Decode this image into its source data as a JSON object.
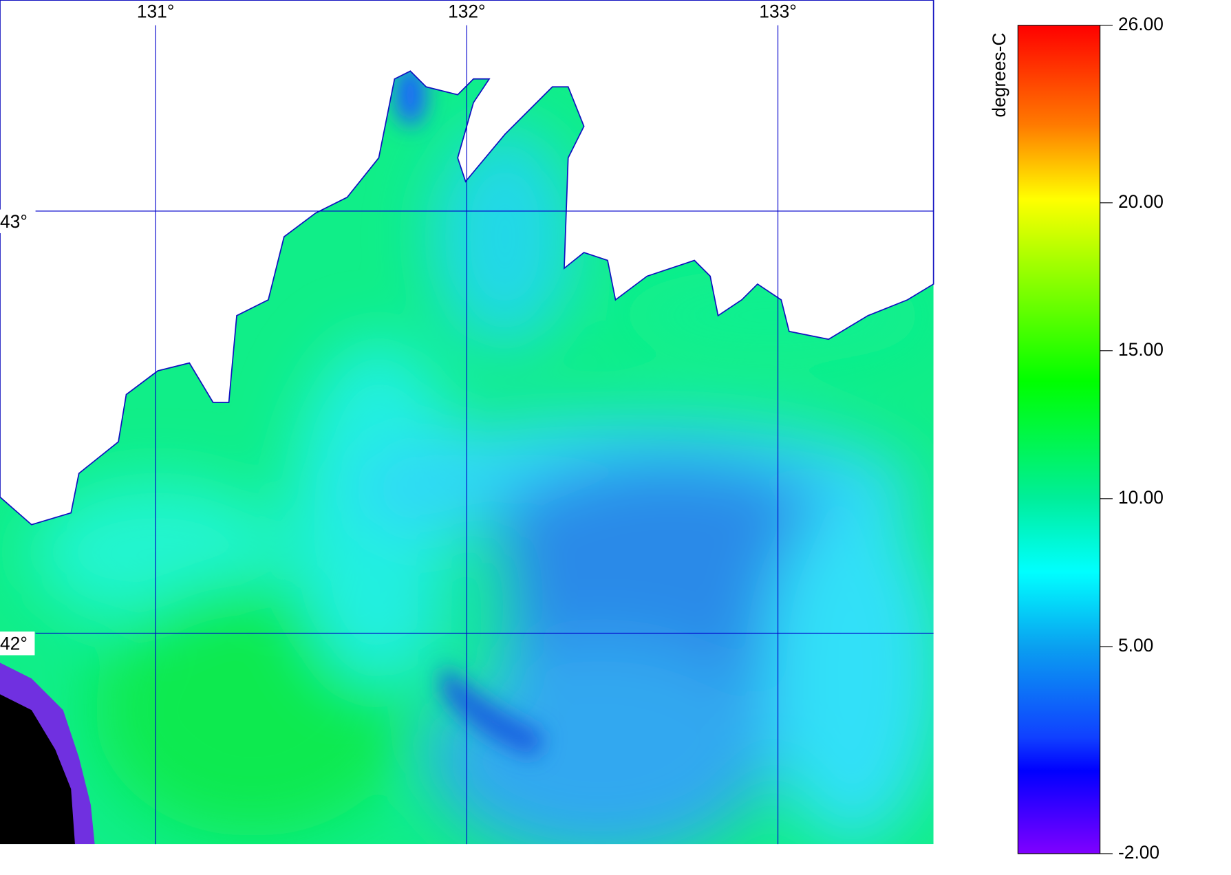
{
  "map": {
    "xlim": [
      130.5,
      133.5
    ],
    "ylim": [
      41.5,
      43.5
    ],
    "longitudes": [
      {
        "value": 131,
        "label": "131°"
      },
      {
        "value": 132,
        "label": "132°"
      },
      {
        "value": 133,
        "label": "133°"
      }
    ],
    "latitudes": [
      {
        "value": 43,
        "label": "43°"
      },
      {
        "value": 42,
        "label": "42°"
      }
    ],
    "colorbar": {
      "label": "degrees-C",
      "lim": [
        -2,
        26
      ],
      "ticks": [
        {
          "value": 26,
          "label": "26.00"
        },
        {
          "value": 20,
          "label": "20.00"
        },
        {
          "value": 15,
          "label": "15.00"
        },
        {
          "value": 10,
          "label": "10.00"
        },
        {
          "value": 5,
          "label": "5.00"
        },
        {
          "value": -2,
          "label": "-2.00"
        }
      ]
    }
  }
}
